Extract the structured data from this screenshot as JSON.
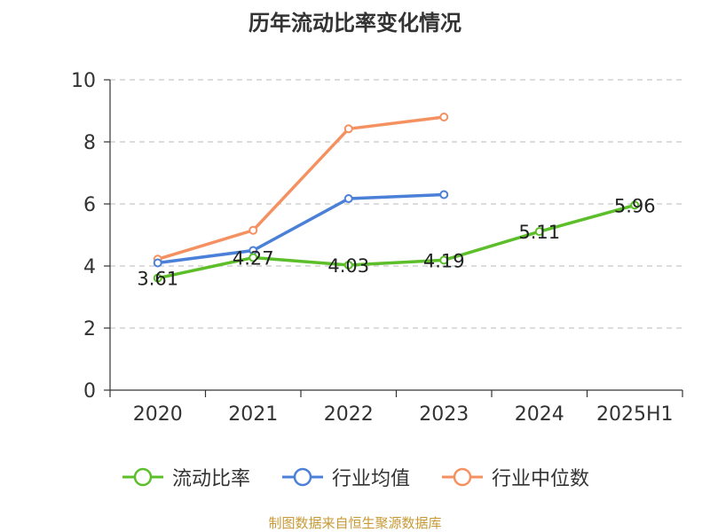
{
  "title": "历年流动比率变化情况",
  "source": "制图数据来自恒生聚源数据库",
  "chart_data": {
    "type": "line",
    "categories": [
      "2020",
      "2021",
      "2022",
      "2023",
      "2024",
      "2025H1"
    ],
    "ylim": [
      0,
      10
    ],
    "yticks": [
      0,
      2,
      4,
      6,
      8,
      10
    ],
    "grid": true,
    "legend": "bottom",
    "series": [
      {
        "name": "流动比率",
        "color": "#5cbf2a",
        "values": [
          3.61,
          4.27,
          4.03,
          4.19,
          5.11,
          5.96
        ],
        "labels": [
          "3.61",
          "4.27",
          "4.03",
          "4.19",
          "5.11",
          "5.96"
        ]
      },
      {
        "name": "行业均值",
        "color": "#4b80d8",
        "values": [
          4.1,
          4.5,
          6.17,
          6.3,
          null,
          null
        ]
      },
      {
        "name": "行业中位数",
        "color": "#f59160",
        "values": [
          4.22,
          5.15,
          8.42,
          8.8,
          null,
          null
        ]
      }
    ]
  }
}
